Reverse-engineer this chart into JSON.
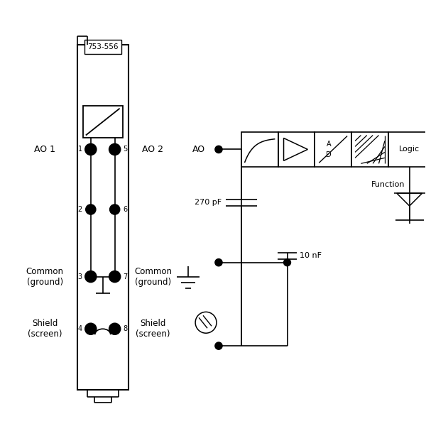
{
  "bg_color": "#ffffff",
  "line_color": "#000000",
  "module_label": "753-556",
  "ao1_label": "AO 1",
  "ao2_label": "AO 2",
  "ao_label": "AO",
  "common_label": "Common\n(ground)",
  "shield_label": "Shield\n(screen)",
  "logic_label": "Logic",
  "function_label": "Function",
  "cap1_label": "270 pF",
  "cap2_label": "10 nF"
}
